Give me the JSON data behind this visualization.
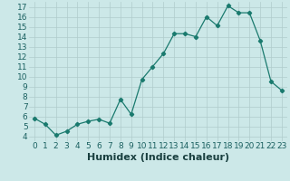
{
  "x": [
    0,
    1,
    2,
    3,
    4,
    5,
    6,
    7,
    8,
    9,
    10,
    11,
    12,
    13,
    14,
    15,
    16,
    17,
    18,
    19,
    20,
    21,
    22,
    23
  ],
  "y": [
    5.8,
    5.2,
    4.1,
    4.5,
    5.2,
    5.5,
    5.7,
    5.3,
    7.7,
    6.2,
    9.7,
    11.0,
    12.3,
    14.3,
    14.3,
    14.0,
    16.0,
    15.1,
    17.1,
    16.4,
    16.4,
    13.6,
    9.5,
    8.6
  ],
  "line_color": "#1a7a6e",
  "marker": "D",
  "marker_size": 2.2,
  "bg_color": "#cce8e8",
  "grid_color": "#b0cccc",
  "xlabel": "Humidex (Indice chaleur)",
  "xlim": [
    -0.5,
    23.5
  ],
  "ylim": [
    3.5,
    17.5
  ],
  "yticks": [
    4,
    5,
    6,
    7,
    8,
    9,
    10,
    11,
    12,
    13,
    14,
    15,
    16,
    17
  ],
  "xticks": [
    0,
    1,
    2,
    3,
    4,
    5,
    6,
    7,
    8,
    9,
    10,
    11,
    12,
    13,
    14,
    15,
    16,
    17,
    18,
    19,
    20,
    21,
    22,
    23
  ],
  "tick_fontsize": 6.5,
  "xlabel_fontsize": 8.0
}
